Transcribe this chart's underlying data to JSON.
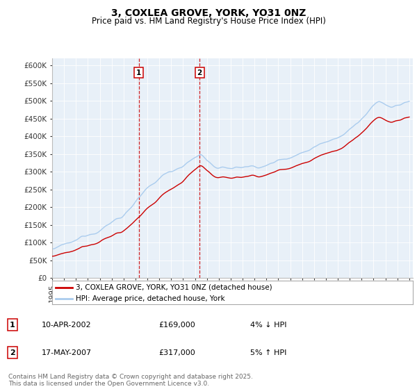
{
  "title": "3, COXLEA GROVE, YORK, YO31 0NZ",
  "subtitle": "Price paid vs. HM Land Registry's House Price Index (HPI)",
  "ylim": [
    0,
    620000
  ],
  "yticks": [
    0,
    50000,
    100000,
    150000,
    200000,
    250000,
    300000,
    350000,
    400000,
    450000,
    500000,
    550000,
    600000
  ],
  "ytick_labels": [
    "£0",
    "£50K",
    "£100K",
    "£150K",
    "£200K",
    "£250K",
    "£300K",
    "£350K",
    "£400K",
    "£450K",
    "£500K",
    "£550K",
    "£600K"
  ],
  "purchase1_date": 2002.27,
  "purchase1_price": 169000,
  "purchase2_date": 2007.38,
  "purchase2_price": 317000,
  "line_color_property": "#cc0000",
  "line_color_hpi": "#aaccee",
  "vline_color": "#cc0000",
  "plot_bg_color": "#e8f0f8",
  "background_color": "#ffffff",
  "grid_color": "#ffffff",
  "legend_label1": "3, COXLEA GROVE, YORK, YO31 0NZ (detached house)",
  "legend_label2": "HPI: Average price, detached house, York",
  "table_row1": [
    "1",
    "10-APR-2002",
    "£169,000",
    "4% ↓ HPI"
  ],
  "table_row2": [
    "2",
    "17-MAY-2007",
    "£317,000",
    "5% ↑ HPI"
  ],
  "footer": "Contains HM Land Registry data © Crown copyright and database right 2025.\nThis data is licensed under the Open Government Licence v3.0.",
  "title_fontsize": 10,
  "subtitle_fontsize": 8.5,
  "tick_fontsize": 7.5,
  "legend_fontsize": 7.5,
  "table_fontsize": 8,
  "footer_fontsize": 6.5
}
